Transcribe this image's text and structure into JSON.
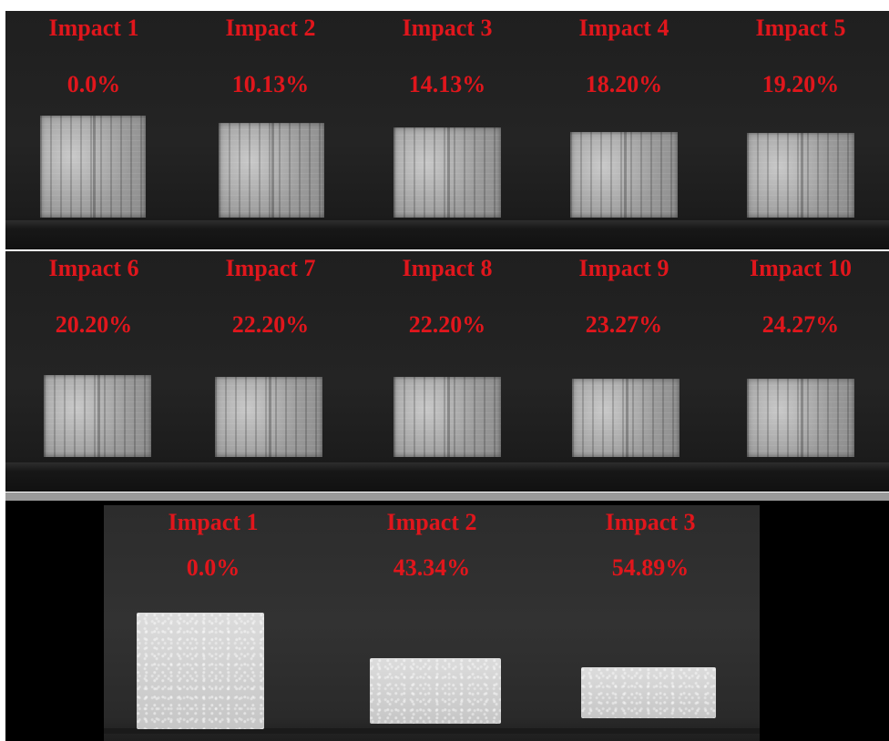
{
  "top_sequence": [
    {
      "label": "Impact 1",
      "strain": "0.0%"
    },
    {
      "label": "Impact 2",
      "strain": "10.13%"
    },
    {
      "label": "Impact 3",
      "strain": "14.13%"
    },
    {
      "label": "Impact 4",
      "strain": "18.20%"
    },
    {
      "label": "Impact 5",
      "strain": "19.20%"
    },
    {
      "label": "Impact 6",
      "strain": "20.20%"
    },
    {
      "label": "Impact 7",
      "strain": "22.20%"
    },
    {
      "label": "Impact 8",
      "strain": "22.20%"
    },
    {
      "label": "Impact 9",
      "strain": "23.27%"
    },
    {
      "label": "Impact 10",
      "strain": "24.27%"
    }
  ],
  "bottom_sequence": [
    {
      "label": "Impact 1",
      "strain": "0.0%"
    },
    {
      "label": "Impact 2",
      "strain": "43.34%"
    },
    {
      "label": "Impact 3",
      "strain": "54.89%"
    }
  ],
  "colors": {
    "label_red": "#e0161c",
    "background": "#1b1b1b",
    "divider": "#9a9a9a"
  }
}
